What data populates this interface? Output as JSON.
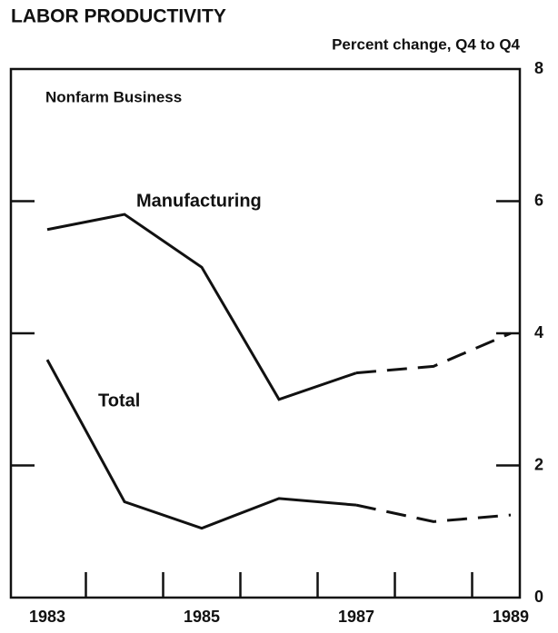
{
  "chart_data": {
    "type": "line",
    "title": "LABOR PRODUCTIVITY",
    "y_label": "Percent change, Q4 to Q4",
    "annotation": "Nonfarm Business",
    "categories": [
      "1983",
      null,
      "1985",
      null,
      "1987",
      null,
      "1989"
    ],
    "series": [
      {
        "name": "Manufacturing",
        "color": "#111111",
        "values": [
          5.57,
          5.8,
          5.0,
          3.0,
          3.4,
          3.5,
          4.0
        ]
      },
      {
        "name": "Total",
        "color": "#111111",
        "values": [
          3.6,
          1.45,
          1.05,
          1.5,
          1.4,
          1.15,
          1.25
        ]
      }
    ],
    "projection_start": 4,
    "ylim": [
      0,
      8
    ],
    "yticks": [
      0,
      2,
      4,
      6,
      8
    ]
  }
}
